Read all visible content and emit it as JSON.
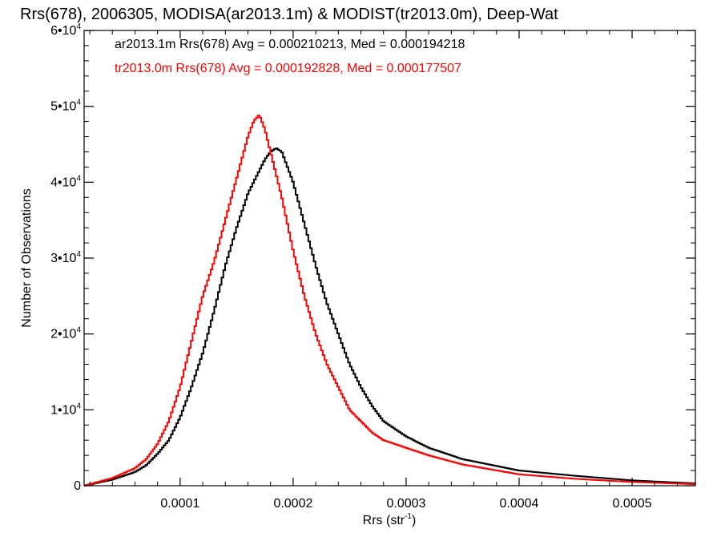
{
  "chart_data": {
    "type": "line",
    "title": "Rrs(678), 2006305, MODISA(ar2013.1m) & MODIST(tr2013.0m), Deep-Wat",
    "xlabel": "Rrs (str",
    "xlabel_sup": "-1",
    "xlabel_close": ")",
    "ylabel": "Number of Observations",
    "xlim": [
      1.5e-05,
      0.000556
    ],
    "ylim": [
      0,
      60000
    ],
    "x_ticks": [
      {
        "value": 0.0001,
        "label": "0.0001"
      },
      {
        "value": 0.0002,
        "label": "0.0002"
      },
      {
        "value": 0.0003,
        "label": "0.0003"
      },
      {
        "value": 0.0004,
        "label": "0.0004"
      },
      {
        "value": 0.0005,
        "label": "0.0005"
      }
    ],
    "y_ticks": [
      {
        "value": 0,
        "base": "0",
        "exp": ""
      },
      {
        "value": 10000,
        "base": "1•10",
        "exp": "4"
      },
      {
        "value": 20000,
        "base": "2•10",
        "exp": "4"
      },
      {
        "value": 30000,
        "base": "3•10",
        "exp": "4"
      },
      {
        "value": 40000,
        "base": "4•10",
        "exp": "4"
      },
      {
        "value": 50000,
        "base": "5•10",
        "exp": "4"
      },
      {
        "value": 60000,
        "base": "6•10",
        "exp": "4"
      }
    ],
    "grid": false,
    "legend_position": "top-left",
    "series": [
      {
        "name": "ar2013.1m",
        "color": "#000000",
        "legend_text": "ar2013.1m Rrs(678) Avg = 0.000210213, Med = 0.000194218",
        "x": [
          1.5e-05,
          4e-05,
          6e-05,
          7e-05,
          8e-05,
          9e-05,
          0.0001,
          0.00011,
          0.00012,
          0.00013,
          0.00014,
          0.00015,
          0.00016,
          0.00017,
          0.000175,
          0.00018,
          0.000185,
          0.00019,
          0.0002,
          0.00021,
          0.00022,
          0.00023,
          0.00024,
          0.00025,
          0.00026,
          0.00027,
          0.00028,
          0.0003,
          0.00032,
          0.00035,
          0.0004,
          0.00045,
          0.0005,
          0.000556
        ],
        "y": [
          0,
          800,
          1800,
          2700,
          4200,
          6000,
          9000,
          13000,
          17500,
          23000,
          29000,
          34000,
          38500,
          41500,
          43000,
          44000,
          44500,
          44000,
          40000,
          34500,
          29000,
          24000,
          20000,
          16000,
          13000,
          10500,
          8500,
          6500,
          5000,
          3500,
          2000,
          1300,
          700,
          300
        ]
      },
      {
        "name": "tr2013.0m",
        "color": "#ff0000",
        "legend_text": "tr2013.0m Rrs(678) Avg = 0.000192828, Med = 0.000177507",
        "x": [
          1.5e-05,
          4e-05,
          6e-05,
          7e-05,
          8e-05,
          9e-05,
          0.0001,
          0.00011,
          0.00012,
          0.00013,
          0.00014,
          0.00015,
          0.00016,
          0.000165,
          0.00017,
          0.000175,
          0.00018,
          0.00019,
          0.0002,
          0.00021,
          0.00022,
          0.00023,
          0.00024,
          0.00025,
          0.00026,
          0.00027,
          0.00028,
          0.0003,
          0.00032,
          0.00035,
          0.0004,
          0.00045,
          0.0005,
          0.000556
        ],
        "y": [
          0,
          1000,
          2300,
          3500,
          5500,
          8500,
          13000,
          19000,
          25000,
          29500,
          35000,
          40500,
          46000,
          48000,
          48900,
          47000,
          44000,
          38000,
          31000,
          25000,
          20000,
          16000,
          13000,
          10000,
          8500,
          7000,
          6000,
          5000,
          4000,
          2800,
          1500,
          900,
          500,
          200
        ]
      }
    ]
  }
}
